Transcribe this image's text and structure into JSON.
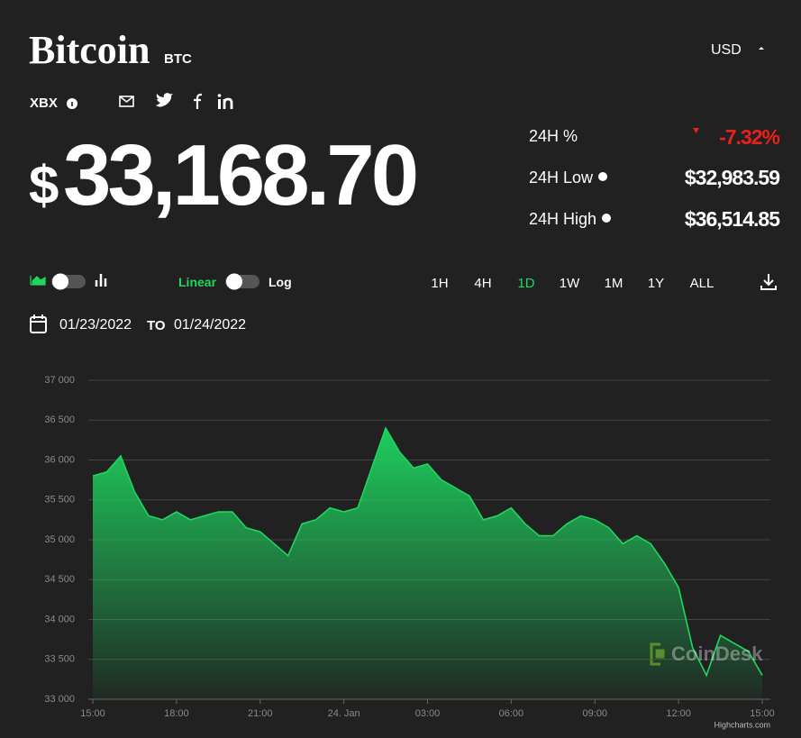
{
  "header": {
    "title": "Bitcoin",
    "symbol": "BTC",
    "currency": "USD",
    "index": "XBX"
  },
  "price": {
    "currency_symbol": "$",
    "amount": "33,168.70"
  },
  "stats": [
    {
      "label": "24H %",
      "value": "-7.32%"
    },
    {
      "label": "24H Low",
      "value": "$32,983.59"
    },
    {
      "label": "24H High",
      "value": "$36,514.85"
    }
  ],
  "controls": {
    "scale_linear": "Linear",
    "scale_log": "Log",
    "ranges": [
      "1H",
      "4H",
      "1D",
      "1W",
      "1M",
      "1Y",
      "ALL"
    ],
    "active_range": 2,
    "date_from": "01/23/2022",
    "date_to_word": "TO",
    "date_to": "01/24/2022"
  },
  "chart_data": {
    "type": "area",
    "color": "#1ed760",
    "grid": true,
    "xlim": [
      0,
      24
    ],
    "xticks": [
      {
        "value": 0,
        "label": "15:00"
      },
      {
        "value": 3,
        "label": "18:00"
      },
      {
        "value": 6,
        "label": "21:00"
      },
      {
        "value": 9,
        "label": "24. Jan"
      },
      {
        "value": 12,
        "label": "03:00"
      },
      {
        "value": 15,
        "label": "06:00"
      },
      {
        "value": 18,
        "label": "09:00"
      },
      {
        "value": 21,
        "label": "12:00"
      },
      {
        "value": 24,
        "label": "15:00"
      }
    ],
    "ylim": [
      33000,
      37000
    ],
    "yticks": [
      {
        "value": 33000,
        "label": "33 000"
      },
      {
        "value": 33500,
        "label": "33 500"
      },
      {
        "value": 34000,
        "label": "34 000"
      },
      {
        "value": 34500,
        "label": "34 500"
      },
      {
        "value": 35000,
        "label": "35 000"
      },
      {
        "value": 35500,
        "label": "35 500"
      },
      {
        "value": 36000,
        "label": "36 000"
      },
      {
        "value": 36500,
        "label": "36 500"
      },
      {
        "value": 37000,
        "label": "37 000"
      }
    ],
    "x": [
      0,
      0.5,
      1,
      1.5,
      2,
      2.5,
      3,
      3.5,
      4,
      4.5,
      5,
      5.5,
      6,
      6.5,
      7,
      7.5,
      8,
      8.5,
      9,
      9.5,
      10,
      10.5,
      11,
      11.5,
      12,
      12.5,
      13,
      13.5,
      14,
      14.5,
      15,
      15.5,
      16,
      16.5,
      17,
      17.5,
      18,
      18.5,
      19,
      19.5,
      20,
      20.5,
      21,
      21.5,
      22,
      22.5,
      23,
      23.5,
      24
    ],
    "values": [
      35800,
      35850,
      36050,
      35600,
      35300,
      35250,
      35350,
      35250,
      35300,
      35350,
      35350,
      35150,
      35100,
      34950,
      34800,
      35200,
      35250,
      35400,
      35350,
      35400,
      35900,
      36400,
      36100,
      35900,
      35950,
      35750,
      35650,
      35550,
      35250,
      35300,
      35400,
      35200,
      35050,
      35050,
      35200,
      35300,
      35250,
      35150,
      34950,
      35050,
      34950,
      34700,
      34400,
      33650,
      33300,
      33800,
      33700,
      33600,
      33300
    ],
    "watermark": "CoinDesk",
    "credits": "Highcharts.com"
  }
}
